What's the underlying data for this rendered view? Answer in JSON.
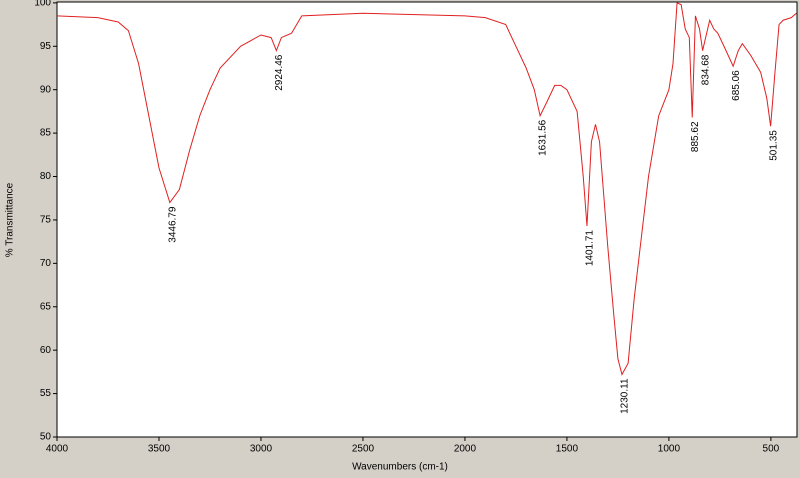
{
  "chart_data": {
    "type": "line",
    "xlabel": "Wavenumbers (cm-1)",
    "ylabel": "% Transmittance",
    "xlim": [
      4000,
      372
    ],
    "ylim": [
      50,
      100.1
    ],
    "xticks": [
      4000,
      3500,
      3000,
      2500,
      2000,
      1500,
      1000,
      500
    ],
    "yticks": [
      50,
      55,
      60,
      65,
      70,
      75,
      80,
      85,
      90,
      95,
      100
    ],
    "series": [
      {
        "color": "#e02020",
        "x": [
          4000,
          3800,
          3700,
          3650,
          3600,
          3550,
          3500,
          3446.79,
          3400,
          3350,
          3300,
          3250,
          3200,
          3100,
          3000,
          2950,
          2924.46,
          2900,
          2850,
          2800,
          2500,
          2000,
          1900,
          1800,
          1750,
          1700,
          1660,
          1631.56,
          1600,
          1560,
          1530,
          1500,
          1450,
          1420,
          1401.71,
          1380,
          1360,
          1340,
          1320,
          1300,
          1270,
          1250,
          1230.11,
          1200,
          1170,
          1130,
          1100,
          1050,
          1000,
          980,
          960,
          940,
          920,
          900,
          885.62,
          870,
          850,
          834.68,
          820,
          800,
          780,
          760,
          720,
          685.06,
          660,
          640,
          600,
          550,
          520,
          501.35,
          480,
          460,
          440,
          400,
          375
        ],
        "values": [
          98.5,
          98.3,
          97.8,
          96.8,
          93,
          87,
          81,
          77.0,
          78.5,
          83,
          87,
          90,
          92.5,
          95,
          96.3,
          96,
          94.5,
          96,
          96.5,
          98.5,
          98.8,
          98.5,
          98.3,
          97.5,
          95,
          92.5,
          90,
          87,
          88.5,
          90.5,
          90.5,
          90,
          87.5,
          80,
          74.3,
          84,
          86,
          84,
          78,
          72,
          64,
          59,
          57.2,
          58.5,
          66,
          74,
          80,
          87,
          90,
          93,
          100,
          99.8,
          97,
          96,
          86.8,
          98.5,
          97,
          94.5,
          96,
          98,
          97,
          96.5,
          94.5,
          92.7,
          94.5,
          95.3,
          94,
          92,
          89,
          85.8,
          92,
          97.5,
          98,
          98.3,
          98.8
        ]
      }
    ],
    "annotations": [
      {
        "x": 3446.79,
        "y": 77.0
      },
      {
        "x": 2924.46,
        "y": 94.5
      },
      {
        "x": 1631.56,
        "y": 87
      },
      {
        "x": 1401.71,
        "y": 74.3
      },
      {
        "x": 1230.11,
        "y": 57.2
      },
      {
        "x": 885.62,
        "y": 86.8
      },
      {
        "x": 834.68,
        "y": 94.5
      },
      {
        "x": 685.06,
        "y": 92.7
      },
      {
        "x": 501.35,
        "y": 85.8
      }
    ]
  }
}
